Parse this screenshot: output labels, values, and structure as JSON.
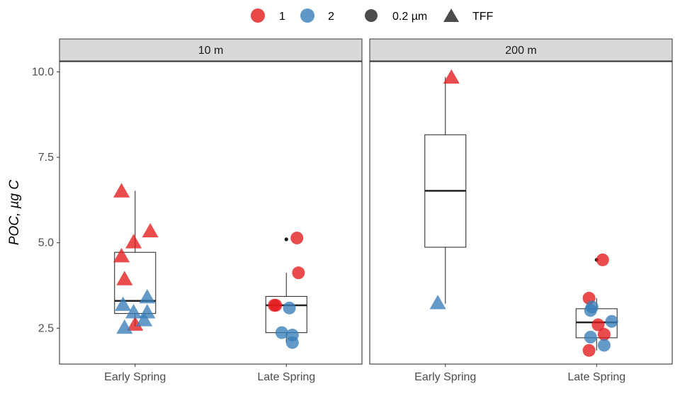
{
  "chart_data": {
    "type": "box+jitter",
    "ylabel": "POC, µg C",
    "xlabel": "",
    "ylim": [
      1.45,
      10.3
    ],
    "y_ticks": [
      2.5,
      5.0,
      7.5,
      10.0
    ],
    "y_tick_labels": [
      "2.5",
      "5.0",
      "7.5",
      "10.0"
    ],
    "categories": [
      "Early Spring",
      "Late Spring"
    ],
    "legend": {
      "position": "top",
      "color_entries": [
        {
          "label": "1",
          "color": "#e41a1c"
        },
        {
          "label": "2",
          "color": "#377eb8"
        }
      ],
      "shape_entries": [
        {
          "label": "0.2 µm",
          "shape": "circle"
        },
        {
          "label": "TFF",
          "shape": "triangle"
        }
      ]
    },
    "panels": [
      {
        "strip": "10  m",
        "boxes": [
          {
            "category": "Early Spring",
            "q1": 2.93,
            "median": 3.3,
            "q3": 4.72,
            "whisker_low": 2.55,
            "whisker_high": 6.52,
            "outliers": []
          },
          {
            "category": "Late Spring",
            "q1": 2.37,
            "median": 3.17,
            "q3": 3.43,
            "whisker_low": 2.08,
            "whisker_high": 4.12,
            "outliers": [
              5.1
            ]
          }
        ],
        "points": [
          {
            "x": 0.91,
            "y": 6.52,
            "group": "1",
            "shape": "triangle"
          },
          {
            "x": 0.91,
            "y": 4.62,
            "group": "1",
            "shape": "triangle"
          },
          {
            "x": 0.99,
            "y": 5.03,
            "group": "1",
            "shape": "triangle"
          },
          {
            "x": 1.1,
            "y": 5.35,
            "group": "1",
            "shape": "triangle"
          },
          {
            "x": 0.93,
            "y": 3.95,
            "group": "1",
            "shape": "triangle"
          },
          {
            "x": 1.0,
            "y": 2.62,
            "group": "1",
            "shape": "triangle"
          },
          {
            "x": 0.92,
            "y": 3.2,
            "group": "2",
            "shape": "triangle"
          },
          {
            "x": 0.99,
            "y": 2.98,
            "group": "2",
            "shape": "triangle"
          },
          {
            "x": 1.08,
            "y": 3.42,
            "group": "2",
            "shape": "triangle"
          },
          {
            "x": 1.08,
            "y": 2.98,
            "group": "2",
            "shape": "triangle"
          },
          {
            "x": 1.06,
            "y": 2.75,
            "group": "2",
            "shape": "triangle"
          },
          {
            "x": 0.93,
            "y": 2.53,
            "group": "2",
            "shape": "triangle"
          },
          {
            "x": 2.07,
            "y": 5.14,
            "group": "1",
            "shape": "circle"
          },
          {
            "x": 2.08,
            "y": 4.12,
            "group": "1",
            "shape": "circle"
          },
          {
            "x": 1.93,
            "y": 3.17,
            "group": "1",
            "shape": "circle"
          },
          {
            "x": 1.92,
            "y": 3.17,
            "group": "1",
            "shape": "circle"
          },
          {
            "x": 2.02,
            "y": 3.09,
            "group": "2",
            "shape": "circle"
          },
          {
            "x": 1.97,
            "y": 2.37,
            "group": "2",
            "shape": "circle"
          },
          {
            "x": 2.04,
            "y": 2.3,
            "group": "2",
            "shape": "circle"
          },
          {
            "x": 2.04,
            "y": 2.08,
            "group": "2",
            "shape": "circle"
          }
        ]
      },
      {
        "strip": "200  m",
        "boxes": [
          {
            "category": "Early Spring",
            "q1": 4.87,
            "median": 6.52,
            "q3": 8.16,
            "whisker_low": 3.22,
            "whisker_high": 9.85,
            "outliers": []
          },
          {
            "category": "Late Spring",
            "q1": 2.22,
            "median": 2.67,
            "q3": 3.07,
            "whisker_low": 1.85,
            "whisker_high": 3.38,
            "outliers": [
              4.5
            ]
          }
        ],
        "points": [
          {
            "x": 1.04,
            "y": 9.85,
            "group": "1",
            "shape": "triangle"
          },
          {
            "x": 0.95,
            "y": 3.25,
            "group": "2",
            "shape": "triangle"
          },
          {
            "x": 2.04,
            "y": 4.5,
            "group": "1",
            "shape": "circle"
          },
          {
            "x": 1.95,
            "y": 3.38,
            "group": "1",
            "shape": "circle"
          },
          {
            "x": 2.01,
            "y": 2.6,
            "group": "1",
            "shape": "circle"
          },
          {
            "x": 2.05,
            "y": 2.32,
            "group": "1",
            "shape": "circle"
          },
          {
            "x": 1.95,
            "y": 1.85,
            "group": "1",
            "shape": "circle"
          },
          {
            "x": 1.97,
            "y": 3.12,
            "group": "2",
            "shape": "circle"
          },
          {
            "x": 1.96,
            "y": 3.02,
            "group": "2",
            "shape": "circle"
          },
          {
            "x": 2.1,
            "y": 2.7,
            "group": "2",
            "shape": "circle"
          },
          {
            "x": 1.96,
            "y": 2.24,
            "group": "2",
            "shape": "circle"
          },
          {
            "x": 2.05,
            "y": 2.0,
            "group": "2",
            "shape": "circle"
          }
        ]
      }
    ]
  }
}
